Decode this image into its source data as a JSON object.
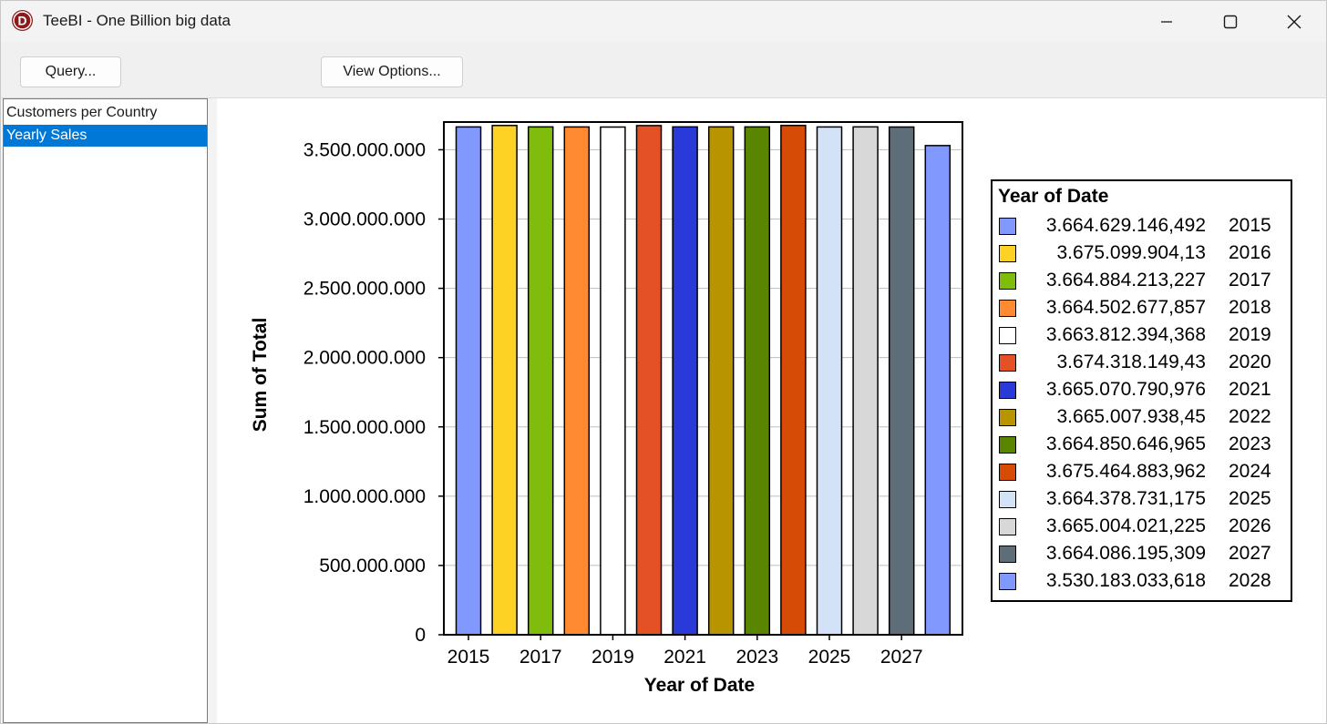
{
  "window": {
    "title": "TeeBI - One Billion big data",
    "icon_letter": "D"
  },
  "toolbar": {
    "query_label": "Query...",
    "view_options_label": "View Options..."
  },
  "sidebar": {
    "items": [
      {
        "label": "Customers per Country",
        "selected": false
      },
      {
        "label": "Yearly Sales",
        "selected": true
      }
    ]
  },
  "chart_data": {
    "type": "bar",
    "title": "",
    "xlabel": "Year of Date",
    "ylabel": "Sum of Total",
    "ylim": [
      0,
      3700000000
    ],
    "yticks": [
      0,
      500000000,
      1000000000,
      1500000000,
      2000000000,
      2500000000,
      3000000000,
      3500000000
    ],
    "ytick_labels": [
      "0",
      "500.000.000",
      "1.000.000.000",
      "1.500.000.000",
      "2.000.000.000",
      "2.500.000.000",
      "3.000.000.000",
      "3.500.000.000"
    ],
    "xtick_labels": [
      "2015",
      "2017",
      "2019",
      "2021",
      "2023",
      "2025",
      "2027"
    ],
    "categories": [
      "2015",
      "2016",
      "2017",
      "2018",
      "2019",
      "2020",
      "2021",
      "2022",
      "2023",
      "2024",
      "2025",
      "2026",
      "2027",
      "2028"
    ],
    "values": [
      3664629146.492,
      3675099904.13,
      3664884213.227,
      3664502677.857,
      3663812394.368,
      3674318149.43,
      3665070790.976,
      3665007938.45,
      3664850646.965,
      3675464883.962,
      3664378731.175,
      3665004021.225,
      3664086195.309,
      3530183033.618
    ],
    "value_labels": [
      "3.664.629.146,492",
      "3.675.099.904,13",
      "3.664.884.213,227",
      "3.664.502.677,857",
      "3.663.812.394,368",
      "3.674.318.149,43",
      "3.665.070.790,976",
      "3.665.007.938,45",
      "3.664.850.646,965",
      "3.675.464.883,962",
      "3.664.378.731,175",
      "3.665.004.021,225",
      "3.664.086.195,309",
      "3.530.183.033,618"
    ],
    "colors": [
      "#8198ff",
      "#fdd224",
      "#7fbc0c",
      "#ff8a31",
      "#ffffff",
      "#e45127",
      "#2a3ad9",
      "#b89400",
      "#5a8500",
      "#d64b05",
      "#d3e2f7",
      "#d8d8d8",
      "#5e6e79",
      "#8198ff"
    ],
    "legend_title": "Year of Date",
    "legend_position": "right",
    "grid": true
  }
}
